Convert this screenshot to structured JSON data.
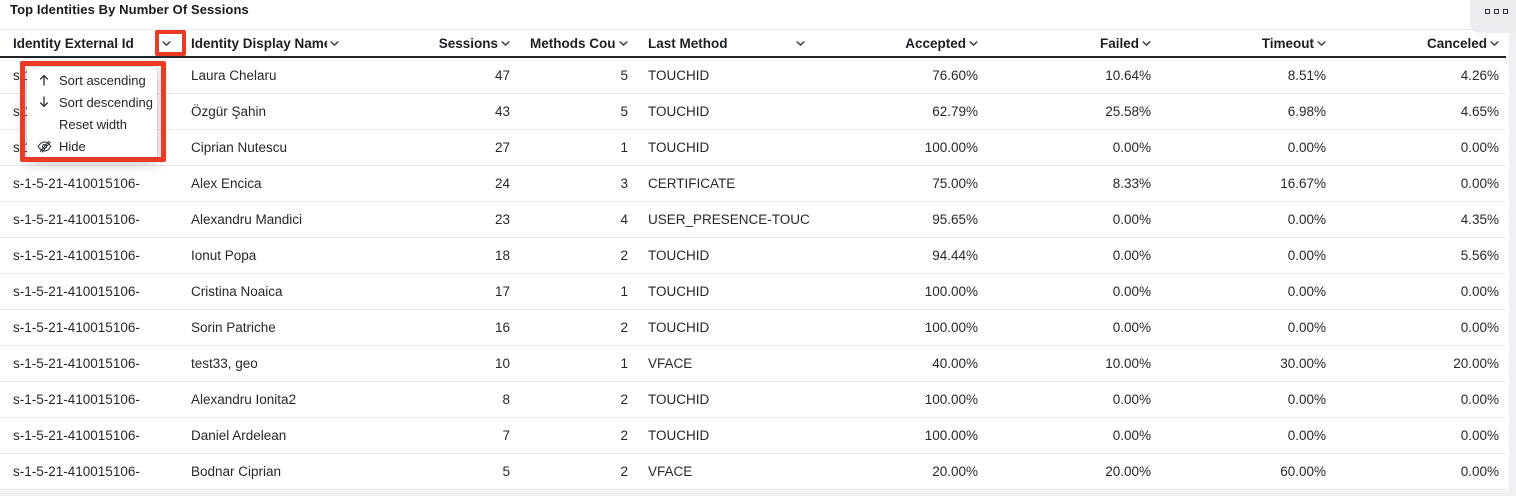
{
  "panel": {
    "title": "Top Identities By Number Of Sessions",
    "options_icon": "panel-options-icon"
  },
  "table": {
    "columns": [
      {
        "label": "Identity External Id",
        "slug": "identity-external-id",
        "align": "left"
      },
      {
        "label": "Identity Display Name",
        "slug": "identity-display-name",
        "align": "left"
      },
      {
        "label": "Sessions",
        "slug": "sessions",
        "align": "right"
      },
      {
        "label": "Methods Count",
        "slug": "methods-count",
        "align": "right"
      },
      {
        "label": "Last Method",
        "slug": "last-method",
        "align": "left"
      },
      {
        "label": "Accepted",
        "slug": "accepted",
        "align": "right"
      },
      {
        "label": "Failed",
        "slug": "failed",
        "align": "right"
      },
      {
        "label": "Timeout",
        "slug": "timeout",
        "align": "right"
      },
      {
        "label": "Canceled",
        "slug": "canceled",
        "align": "right"
      }
    ],
    "sort_icon": "chevron-down-icon",
    "rows": [
      [
        "s-1-5-21-410015106-",
        "Laura Chelaru",
        "47",
        "5",
        "TOUCHID",
        "76.60%",
        "10.64%",
        "8.51%",
        "4.26%"
      ],
      [
        "s-1-5-21-410015106-",
        "Özgür Şahin",
        "43",
        "5",
        "TOUCHID",
        "62.79%",
        "25.58%",
        "6.98%",
        "4.65%"
      ],
      [
        "s-1-5-21-410015106-",
        "Ciprian Nutescu",
        "27",
        "1",
        "TOUCHID",
        "100.00%",
        "0.00%",
        "0.00%",
        "0.00%"
      ],
      [
        "s-1-5-21-410015106-",
        "Alex Encica",
        "24",
        "3",
        "CERTIFICATE",
        "75.00%",
        "8.33%",
        "16.67%",
        "0.00%"
      ],
      [
        "s-1-5-21-410015106-",
        "Alexandru Mandici",
        "23",
        "4",
        "USER_PRESENCE-TOUC",
        "95.65%",
        "0.00%",
        "0.00%",
        "4.35%"
      ],
      [
        "s-1-5-21-410015106-",
        "Ionut Popa",
        "18",
        "2",
        "TOUCHID",
        "94.44%",
        "0.00%",
        "0.00%",
        "5.56%"
      ],
      [
        "s-1-5-21-410015106-",
        "Cristina Noaica",
        "17",
        "1",
        "TOUCHID",
        "100.00%",
        "0.00%",
        "0.00%",
        "0.00%"
      ],
      [
        "s-1-5-21-410015106-",
        "Sorin Patriche",
        "16",
        "2",
        "TOUCHID",
        "100.00%",
        "0.00%",
        "0.00%",
        "0.00%"
      ],
      [
        "s-1-5-21-410015106-",
        "test33, geo",
        "10",
        "1",
        "VFACE",
        "40.00%",
        "10.00%",
        "30.00%",
        "20.00%"
      ],
      [
        "s-1-5-21-410015106-",
        "Alexandru Ionita2",
        "8",
        "2",
        "TOUCHID",
        "100.00%",
        "0.00%",
        "0.00%",
        "0.00%"
      ],
      [
        "s-1-5-21-410015106-",
        "Daniel Ardelean",
        "7",
        "2",
        "TOUCHID",
        "100.00%",
        "0.00%",
        "0.00%",
        "0.00%"
      ],
      [
        "s-1-5-21-410015106-",
        "Bodnar Ciprian",
        "5",
        "2",
        "VFACE",
        "20.00%",
        "20.00%",
        "60.00%",
        "0.00%"
      ]
    ]
  },
  "column_menu": {
    "items": [
      {
        "label": "Sort ascending",
        "icon": "arrow-up"
      },
      {
        "label": "Sort descending",
        "icon": "arrow-down"
      },
      {
        "label": "Reset width",
        "icon": ""
      },
      {
        "label": "Hide",
        "icon": "eye-off"
      }
    ]
  },
  "annotations": {
    "highlight_color": "#eb3b25",
    "targets": [
      "identity-external-id-sort-chevron",
      "column-menu"
    ]
  }
}
